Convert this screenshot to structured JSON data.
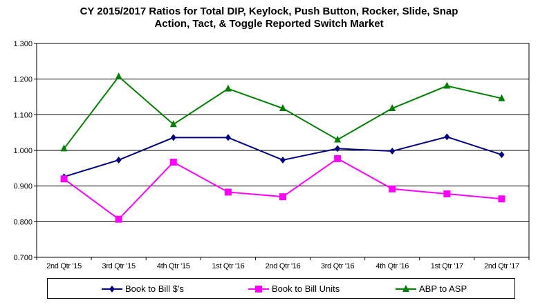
{
  "chart_data": {
    "type": "line",
    "title": [
      "CY 2015/2017  Ratios for Total DIP, Keylock, Push Button, Rocker, Slide, Snap",
      "Action,  Tact, & Toggle Reported Switch Market"
    ],
    "categories": [
      "2nd Qtr  '15",
      "3rd Qtr '15",
      "4th Qtr '15",
      "1st Qtr '16",
      "2nd Qtr  '16",
      "3rd Qtr '16",
      "4th Qtr '16",
      "1st Qtr '17",
      "2nd Qtr  '17"
    ],
    "ylim": [
      0.7,
      1.3
    ],
    "yticks": [
      "0.700",
      "0.800",
      "0.900",
      "1.000",
      "1.100",
      "1.200",
      "1.300"
    ],
    "grid": true,
    "legend": "bottom",
    "series": [
      {
        "name": "Book to Bill $'s",
        "color": "#000080",
        "marker": "diamond",
        "values": [
          0.926,
          0.973,
          1.036,
          1.036,
          0.973,
          1.005,
          0.998,
          1.038,
          0.988
        ]
      },
      {
        "name": "Book to Bill Units",
        "color": "#FF00FF",
        "marker": "square",
        "values": [
          0.92,
          0.807,
          0.967,
          0.883,
          0.87,
          0.977,
          0.892,
          0.878,
          0.864
        ]
      },
      {
        "name": "ABP to ASP",
        "color": "#008000",
        "marker": "triangle",
        "values": [
          1.005,
          1.207,
          1.073,
          1.173,
          1.118,
          1.03,
          1.118,
          1.181,
          1.146
        ]
      }
    ]
  }
}
